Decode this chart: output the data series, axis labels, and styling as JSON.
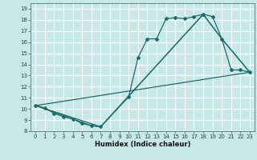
{
  "xlabel": "Humidex (Indice chaleur)",
  "bg_color": "#c8e8e8",
  "grid_color": "#ffffff",
  "line_color": "#1a6b6b",
  "xlim": [
    -0.5,
    23.5
  ],
  "ylim": [
    8,
    19.5
  ],
  "xticks": [
    0,
    1,
    2,
    3,
    4,
    5,
    6,
    7,
    8,
    9,
    10,
    11,
    12,
    13,
    14,
    15,
    16,
    17,
    18,
    19,
    20,
    21,
    22,
    23
  ],
  "yticks": [
    8,
    9,
    10,
    11,
    12,
    13,
    14,
    15,
    16,
    17,
    18,
    19
  ],
  "line_main": {
    "x": [
      0,
      1,
      2,
      3,
      4,
      5,
      6,
      7,
      10,
      11,
      12,
      13,
      14,
      15,
      16,
      17,
      18,
      19,
      20,
      21,
      22,
      23
    ],
    "y": [
      10.3,
      10.1,
      9.6,
      9.3,
      9.1,
      8.7,
      8.5,
      8.4,
      11.1,
      14.6,
      16.3,
      16.3,
      18.1,
      18.2,
      18.1,
      18.3,
      18.5,
      18.3,
      16.3,
      13.5,
      13.5,
      13.3
    ]
  },
  "line_straight": {
    "x": [
      0,
      23
    ],
    "y": [
      10.3,
      13.3
    ]
  },
  "line_envelope1": {
    "x": [
      0,
      7,
      18,
      20,
      23
    ],
    "y": [
      10.3,
      8.4,
      18.5,
      16.3,
      13.3
    ]
  },
  "line_envelope2": {
    "x": [
      0,
      6,
      7,
      18,
      20,
      23
    ],
    "y": [
      10.3,
      8.5,
      8.4,
      18.5,
      16.3,
      13.3
    ]
  }
}
